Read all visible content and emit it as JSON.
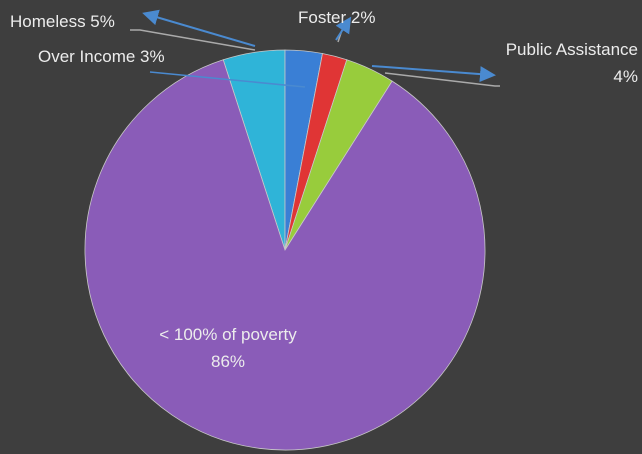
{
  "chart_data": {
    "type": "pie",
    "labels": [
      "Homeless 5%",
      "Over Income 3%",
      "Foster 2%",
      "Public Assistance 4%",
      "< 100% of poverty 86%"
    ],
    "values": [
      5,
      3,
      2,
      4,
      86
    ],
    "colors": [
      "#2fb4d8",
      "#3a7fd5",
      "#e03535",
      "#98cc3c",
      "#8a5cb8"
    ]
  }
}
